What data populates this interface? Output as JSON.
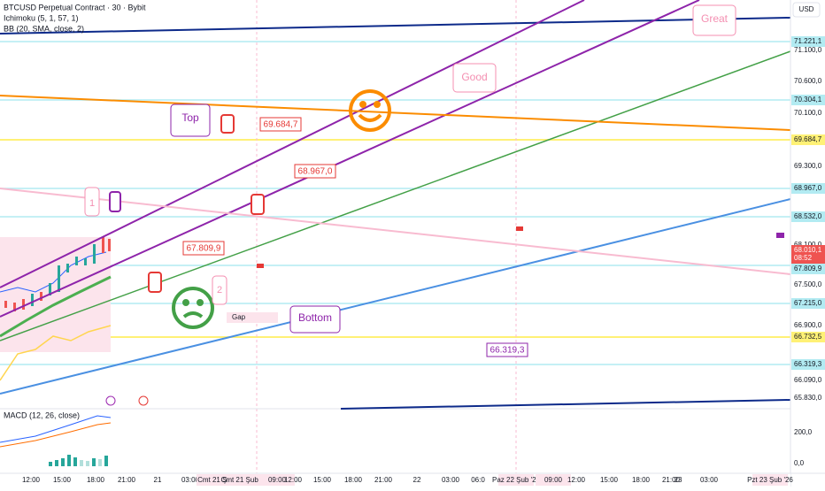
{
  "header": {
    "symbol": "BTCUSD Perpetual Contract · 30 · Bybit",
    "indicators": [
      "Ichimoku (5, 1, 57, 1)",
      "BB (20, SMA, close, 2)"
    ],
    "currency": "USD"
  },
  "macd": {
    "title": "MACD (12, 26, close)"
  },
  "price_axis": {
    "labels": [
      "71.221,1",
      "71.100,0",
      "70.600,0",
      "70.304,1",
      "70.100,0",
      "69.684,7",
      "69.300,0",
      "68.967,0",
      "68.532,0",
      "68.100,0",
      "68.010,1",
      "08:52",
      "67.809,9",
      "67.500,0",
      "67.215,0",
      "66.900,0",
      "66.732,5",
      "66.319,3",
      "66.090,0",
      "65.830,0",
      "200,0",
      "0,0"
    ]
  },
  "time_axis": {
    "labels": [
      "12:00",
      "15:00",
      "18:00",
      "21:00",
      "21",
      "03:00",
      "Cmt 21 Şu",
      "Cmt 21 Şub '26",
      "09:00",
      "12:00",
      "15:00",
      "18:00",
      "21:00",
      "22",
      "03:00",
      "06:0",
      "Paz 22 Şub '26",
      "09:00",
      "12:00",
      "15:00",
      "18:00",
      "21:00",
      "23",
      "03:00",
      "Pzt 23 Şub '26"
    ]
  },
  "annotations": {
    "top": "Top",
    "good": "Good",
    "great": "Great",
    "bottom": "Bottom",
    "gap": "Gap",
    "one": "1",
    "two": "2",
    "price_labels": [
      "69.684,7",
      "68.967,0",
      "67.809,9",
      "66.319,3"
    ]
  }
}
